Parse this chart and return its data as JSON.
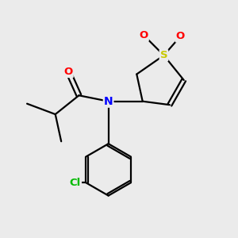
{
  "background_color": "#ebebeb",
  "atom_colors": {
    "S": "#c8c800",
    "O": "#ff0000",
    "N": "#0000ff",
    "Cl": "#00bb00",
    "C": "#000000"
  }
}
